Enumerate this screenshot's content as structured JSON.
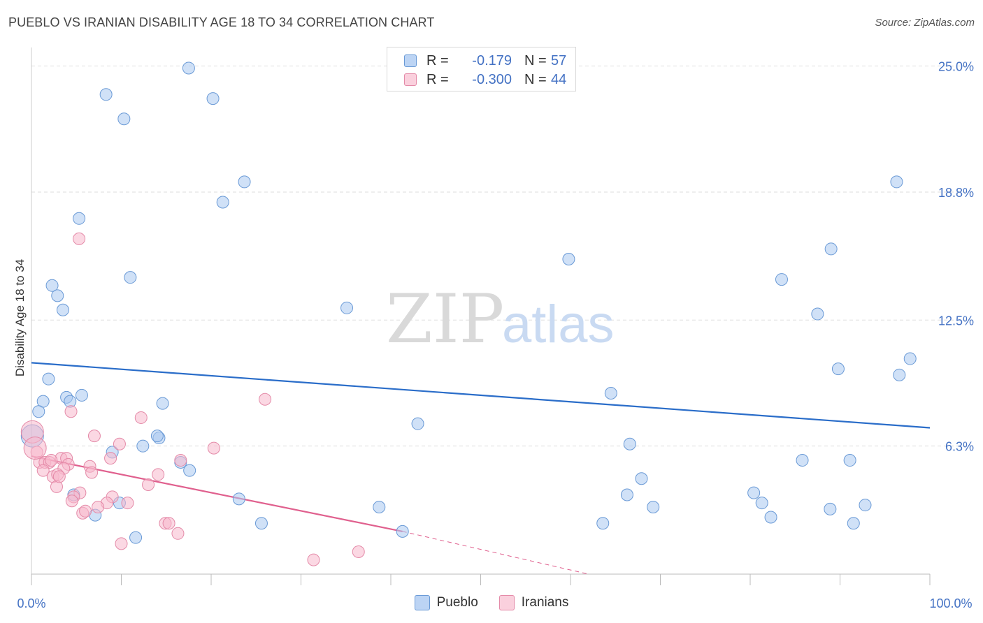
{
  "title": "PUEBLO VS IRANIAN DISABILITY AGE 18 TO 34 CORRELATION CHART",
  "source": "Source: ZipAtlas.com",
  "watermark": {
    "zip": "ZIP",
    "atlas": "atlas"
  },
  "legend_top": {
    "rows": [
      {
        "r_label": "R =",
        "r_value": "-0.179",
        "n_label": "N =",
        "n_value": "57"
      },
      {
        "r_label": "R =",
        "r_value": "-0.300",
        "n_label": "N =",
        "n_value": "44"
      }
    ]
  },
  "colors": {
    "pueblo_fill": "#a9c8f0",
    "pueblo_stroke": "#6a9ad6",
    "pueblo_line": "#2a6dc9",
    "iranians_fill": "#f7b8cc",
    "iranians_stroke": "#e48aa8",
    "iranians_line": "#e0608e",
    "tick_label": "#4472c4",
    "grid": "#dddddd"
  },
  "chart_data": {
    "type": "scatter",
    "title": "PUEBLO VS IRANIAN DISABILITY AGE 18 TO 34 CORRELATION CHART",
    "xlabel": "",
    "ylabel": "Disability Age 18 to 34",
    "xlim": [
      0,
      100
    ],
    "ylim": [
      0,
      25.5
    ],
    "x_tick_labels": [
      "0.0%",
      "100.0%"
    ],
    "y_ticks": [
      6.3,
      12.5,
      18.8,
      25.0
    ],
    "y_tick_labels": [
      "6.3%",
      "12.5%",
      "18.8%",
      "25.0%"
    ],
    "series": [
      {
        "name": "Pueblo",
        "r": -0.179,
        "n": 57,
        "trend": {
          "x": [
            0,
            100
          ],
          "y": [
            10.4,
            7.2
          ]
        },
        "points": [
          {
            "x": 17.5,
            "y": 24.9
          },
          {
            "x": 8.3,
            "y": 23.6
          },
          {
            "x": 20.2,
            "y": 23.4
          },
          {
            "x": 10.3,
            "y": 22.4
          },
          {
            "x": 23.7,
            "y": 19.3
          },
          {
            "x": 21.3,
            "y": 18.3
          },
          {
            "x": 5.3,
            "y": 17.5
          },
          {
            "x": 11.0,
            "y": 14.6
          },
          {
            "x": 2.3,
            "y": 14.2
          },
          {
            "x": 2.9,
            "y": 13.7
          },
          {
            "x": 3.5,
            "y": 13.0
          },
          {
            "x": 1.9,
            "y": 9.6
          },
          {
            "x": 5.6,
            "y": 8.8
          },
          {
            "x": 1.3,
            "y": 8.5
          },
          {
            "x": 3.9,
            "y": 8.7
          },
          {
            "x": 4.3,
            "y": 8.5
          },
          {
            "x": 0.8,
            "y": 8.0
          },
          {
            "x": 14.6,
            "y": 8.4
          },
          {
            "x": 14.2,
            "y": 6.7
          },
          {
            "x": 14.0,
            "y": 6.8
          },
          {
            "x": 12.4,
            "y": 6.3
          },
          {
            "x": 9.0,
            "y": 6.0
          },
          {
            "x": 16.6,
            "y": 5.5
          },
          {
            "x": 17.6,
            "y": 5.1
          },
          {
            "x": 4.7,
            "y": 3.9
          },
          {
            "x": 9.8,
            "y": 3.5
          },
          {
            "x": 7.1,
            "y": 2.9
          },
          {
            "x": 11.6,
            "y": 1.8
          },
          {
            "x": 23.1,
            "y": 3.7
          },
          {
            "x": 25.6,
            "y": 2.5
          },
          {
            "x": 35.1,
            "y": 13.1
          },
          {
            "x": 43.0,
            "y": 7.4
          },
          {
            "x": 38.7,
            "y": 3.3
          },
          {
            "x": 41.3,
            "y": 2.1
          },
          {
            "x": 59.8,
            "y": 15.5
          },
          {
            "x": 64.5,
            "y": 8.9
          },
          {
            "x": 66.6,
            "y": 6.4
          },
          {
            "x": 67.9,
            "y": 4.7
          },
          {
            "x": 66.3,
            "y": 3.9
          },
          {
            "x": 69.2,
            "y": 3.3
          },
          {
            "x": 63.6,
            "y": 2.5
          },
          {
            "x": 83.5,
            "y": 14.5
          },
          {
            "x": 89.0,
            "y": 16.0
          },
          {
            "x": 87.5,
            "y": 12.8
          },
          {
            "x": 89.8,
            "y": 10.1
          },
          {
            "x": 96.3,
            "y": 19.3
          },
          {
            "x": 97.8,
            "y": 10.6
          },
          {
            "x": 96.6,
            "y": 9.8
          },
          {
            "x": 80.4,
            "y": 4.0
          },
          {
            "x": 81.3,
            "y": 3.5
          },
          {
            "x": 85.8,
            "y": 5.6
          },
          {
            "x": 91.1,
            "y": 5.6
          },
          {
            "x": 82.3,
            "y": 2.8
          },
          {
            "x": 88.9,
            "y": 3.2
          },
          {
            "x": 92.8,
            "y": 3.4
          },
          {
            "x": 91.5,
            "y": 2.5
          },
          {
            "x": 0.1,
            "y": 6.8
          }
        ]
      },
      {
        "name": "Iranians",
        "r": -0.3,
        "n": 44,
        "trend": {
          "x": [
            0,
            41.3
          ],
          "y": [
            5.8,
            2.1
          ]
        },
        "trend_dashed": {
          "x": [
            41.3,
            62
          ],
          "y": [
            2.1,
            0.0
          ]
        },
        "points": [
          {
            "x": 5.3,
            "y": 16.5
          },
          {
            "x": 4.4,
            "y": 8.0
          },
          {
            "x": 26.0,
            "y": 8.6
          },
          {
            "x": 12.2,
            "y": 7.7
          },
          {
            "x": 7.0,
            "y": 6.8
          },
          {
            "x": 9.8,
            "y": 6.4
          },
          {
            "x": 20.3,
            "y": 6.2
          },
          {
            "x": 0.6,
            "y": 6.0
          },
          {
            "x": 3.3,
            "y": 5.7
          },
          {
            "x": 3.9,
            "y": 5.7
          },
          {
            "x": 0.9,
            "y": 5.5
          },
          {
            "x": 1.5,
            "y": 5.5
          },
          {
            "x": 2.0,
            "y": 5.5
          },
          {
            "x": 4.1,
            "y": 5.4
          },
          {
            "x": 8.8,
            "y": 5.7
          },
          {
            "x": 16.6,
            "y": 5.6
          },
          {
            "x": 6.5,
            "y": 5.3
          },
          {
            "x": 1.3,
            "y": 5.1
          },
          {
            "x": 3.6,
            "y": 5.2
          },
          {
            "x": 6.7,
            "y": 5.0
          },
          {
            "x": 2.4,
            "y": 4.8
          },
          {
            "x": 2.9,
            "y": 4.9
          },
          {
            "x": 14.1,
            "y": 4.9
          },
          {
            "x": 2.8,
            "y": 4.3
          },
          {
            "x": 13.0,
            "y": 4.4
          },
          {
            "x": 5.4,
            "y": 4.0
          },
          {
            "x": 4.7,
            "y": 3.8
          },
          {
            "x": 4.5,
            "y": 3.6
          },
          {
            "x": 9.0,
            "y": 3.8
          },
          {
            "x": 8.4,
            "y": 3.5
          },
          {
            "x": 10.7,
            "y": 3.5
          },
          {
            "x": 7.4,
            "y": 3.3
          },
          {
            "x": 5.7,
            "y": 3.0
          },
          {
            "x": 6.0,
            "y": 3.1
          },
          {
            "x": 14.9,
            "y": 2.5
          },
          {
            "x": 15.3,
            "y": 2.5
          },
          {
            "x": 16.3,
            "y": 2.0
          },
          {
            "x": 10.0,
            "y": 1.5
          },
          {
            "x": 31.4,
            "y": 0.7
          },
          {
            "x": 36.4,
            "y": 1.1
          },
          {
            "x": 0.1,
            "y": 7.0
          },
          {
            "x": 2.2,
            "y": 5.6
          },
          {
            "x": 3.1,
            "y": 4.8
          },
          {
            "x": 0.4,
            "y": 6.2
          }
        ]
      }
    ]
  },
  "legend_bottom": [
    "Pueblo",
    "Iranians"
  ]
}
